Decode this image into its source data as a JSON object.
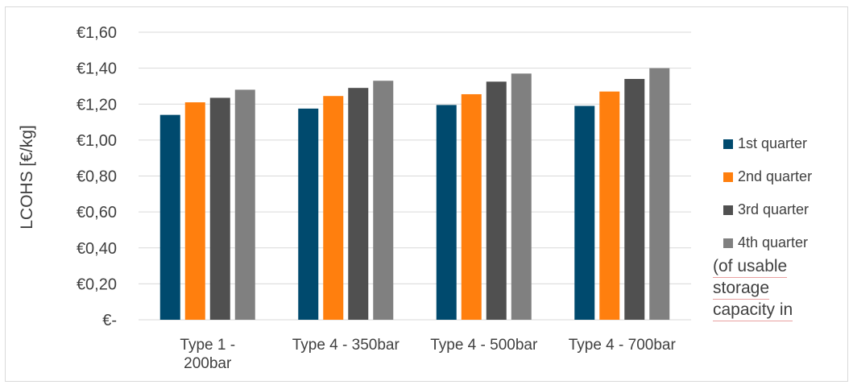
{
  "chart_data": {
    "type": "bar",
    "ylabel": "LCOHS [€/kg]",
    "categories": [
      "Type 1 - 200bar",
      "Type 4 - 350bar",
      "Type 4 - 500bar",
      "Type 4 - 700bar"
    ],
    "category_labels": [
      [
        "Type 1  -",
        "200bar"
      ],
      [
        "Type 4 - 350bar"
      ],
      [
        "Type 4 - 500bar"
      ],
      [
        "Type 4 - 700bar"
      ]
    ],
    "series": [
      {
        "name": "1st quarter",
        "color": "#004a6e",
        "values": [
          1.14,
          1.175,
          1.195,
          1.19
        ]
      },
      {
        "name": "2nd quarter",
        "color": "#ff7f0e",
        "values": [
          1.21,
          1.245,
          1.255,
          1.27
        ]
      },
      {
        "name": "3rd quarter",
        "color": "#505050",
        "values": [
          1.235,
          1.29,
          1.325,
          1.34
        ]
      },
      {
        "name": "4th quarter",
        "color": "#808080",
        "values": [
          1.28,
          1.33,
          1.37,
          1.4
        ]
      }
    ],
    "ylim": [
      0,
      1.6
    ],
    "yticks": [
      0,
      0.2,
      0.4,
      0.6,
      0.8,
      1.0,
      1.2,
      1.4,
      1.6
    ],
    "ytick_labels": [
      "€-",
      "€0,20",
      "€0,40",
      "€0,60",
      "€0,80",
      "€1,00",
      "€1,20",
      "€1,40",
      "€1,60"
    ],
    "grid": true,
    "legend_position": "right"
  },
  "note_lines": [
    "(of usable",
    "storage",
    "capacity in"
  ]
}
